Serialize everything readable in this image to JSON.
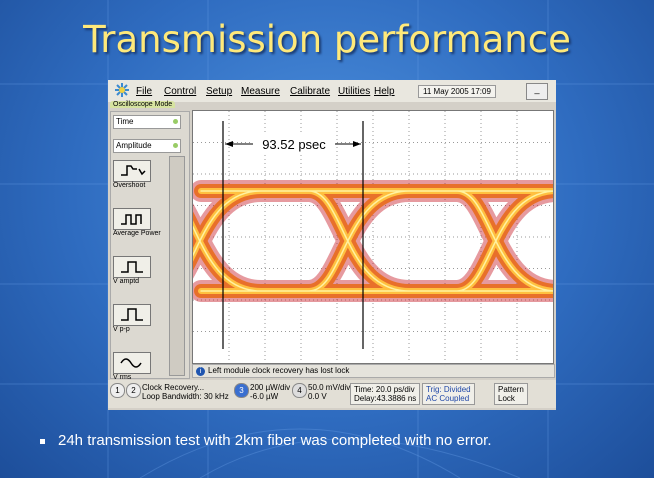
{
  "title": "Transmission performance",
  "screenshot": {
    "menu": [
      "File",
      "Control",
      "Setup",
      "Measure",
      "Calibrate",
      "Utilities",
      "Help"
    ],
    "datetime": "11 May 2005  17:09",
    "minimize": "_",
    "mode": "Oscilloscope Mode",
    "selectors": [
      "Time",
      "Amplitude"
    ],
    "measurements": [
      "Overshoot",
      "Average Power",
      "V amptd",
      "V p-p",
      "V rms"
    ],
    "marker_delta": "93.52 psec",
    "status_icon": "i",
    "status": "Left module clock recovery has lost lock",
    "channels": [
      {
        "ids": [
          "1",
          "2"
        ],
        "lines": [
          "Clock Recovery...",
          "Loop Bandwidth: 30 kHz"
        ]
      },
      {
        "ids": [
          "3"
        ],
        "lines": [
          "200 µW/div",
          "-6.0 µW"
        ]
      },
      {
        "ids": [
          "4"
        ],
        "lines": [
          "50.0 mV/div",
          "0.0 V"
        ]
      }
    ],
    "timebase": [
      "Time: 20.0 ps/div",
      "Delay:43.3886 ns"
    ],
    "trigger": [
      "Trig: Divided",
      "AC Coupled"
    ],
    "pattern_lock": [
      "Pattern",
      "Lock"
    ]
  },
  "bullets": [
    "24h transmission test with 2km fiber was completed with no error."
  ]
}
